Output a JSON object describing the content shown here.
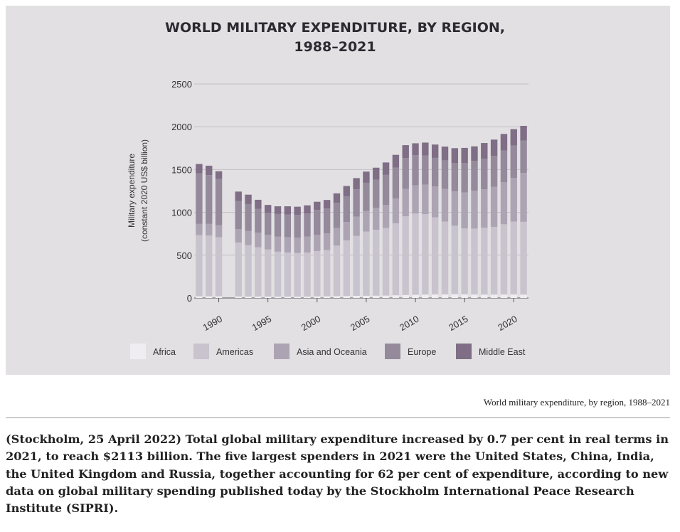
{
  "chart_data": {
    "type": "bar",
    "stacked": true,
    "title_lines": [
      "WORLD MILITARY EXPENDITURE, BY REGION,",
      "1988–2021"
    ],
    "ylabel_lines": [
      "Military expenditure",
      "(constant 2020 US$ billion)"
    ],
    "xlabel": "",
    "ylim": [
      0,
      2500
    ],
    "yticks": [
      0,
      500,
      1000,
      1500,
      2000,
      2500
    ],
    "xticks": [
      1990,
      1995,
      2000,
      2005,
      2010,
      2015,
      2020
    ],
    "grid": "horizontal",
    "legend_position": "bottom",
    "categories": [
      1988,
      1989,
      1990,
      1991,
      1992,
      1993,
      1994,
      1995,
      1996,
      1997,
      1998,
      1999,
      2000,
      2001,
      2002,
      2003,
      2004,
      2005,
      2006,
      2007,
      2008,
      2009,
      2010,
      2011,
      2012,
      2013,
      2014,
      2015,
      2016,
      2017,
      2018,
      2019,
      2020,
      2021
    ],
    "series": [
      {
        "name": "Africa",
        "color": "#efedf1",
        "values": [
          20,
          20,
          20,
          null,
          18,
          17,
          17,
          17,
          16,
          16,
          16,
          17,
          19,
          20,
          22,
          23,
          25,
          26,
          27,
          28,
          32,
          35,
          37,
          40,
          42,
          43,
          45,
          43,
          41,
          40,
          40,
          41,
          42,
          40
        ]
      },
      {
        "name": "Americas",
        "color": "#c9c3ce",
        "values": [
          715,
          710,
          690,
          null,
          630,
          600,
          575,
          550,
          525,
          515,
          510,
          515,
          530,
          540,
          590,
          650,
          700,
          750,
          770,
          790,
          840,
          920,
          950,
          940,
          900,
          850,
          800,
          770,
          770,
          780,
          790,
          820,
          850,
          850
        ]
      },
      {
        "name": "Asia and Oceania",
        "color": "#ada4b3",
        "values": [
          130,
          135,
          140,
          null,
          155,
          165,
          170,
          170,
          175,
          180,
          180,
          185,
          190,
          195,
          205,
          215,
          225,
          240,
          255,
          270,
          290,
          320,
          330,
          345,
          360,
          380,
          400,
          420,
          440,
          450,
          470,
          490,
          510,
          570
        ]
      },
      {
        "name": "Europe",
        "color": "#958a9c",
        "values": [
          590,
          570,
          540,
          null,
          330,
          315,
          280,
          260,
          265,
          265,
          265,
          270,
          290,
          290,
          295,
          300,
          320,
          330,
          330,
          350,
          360,
          360,
          350,
          340,
          335,
          335,
          330,
          345,
          350,
          355,
          360,
          370,
          380,
          380
        ]
      },
      {
        "name": "Middle East",
        "color": "#7f6e86",
        "values": [
          110,
          110,
          90,
          null,
          110,
          110,
          105,
          90,
          90,
          95,
          95,
          95,
          95,
          100,
          110,
          120,
          130,
          130,
          140,
          145,
          150,
          150,
          140,
          150,
          155,
          160,
          175,
          175,
          170,
          185,
          190,
          195,
          190,
          170
        ]
      }
    ]
  },
  "caption": "World military expenditure, by region, 1988–2021",
  "body_text": "(Stockholm, 25 April 2022) Total global military expenditure increased by 0.7 per cent in real terms in 2021, to reach $2113 billion. The five largest spenders in 2021 were the United States, China, India, the United Kingdom and Russia, together accounting for 62 per cent of expenditure, according to new data on global military spending published today by the Stockholm International Peace Research Institute (SIPRI)."
}
